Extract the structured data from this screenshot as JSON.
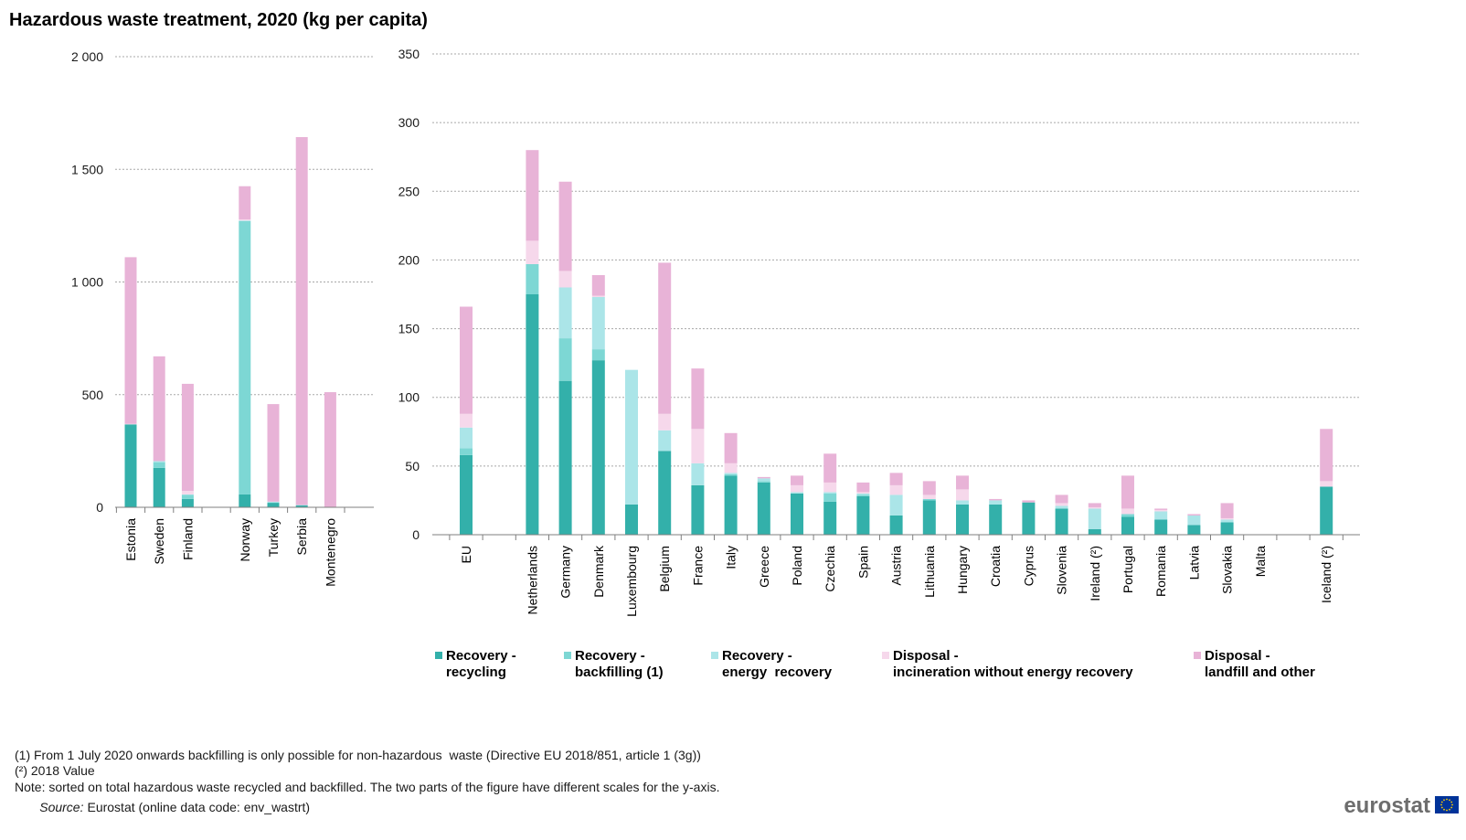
{
  "title": "Hazardous waste treatment, 2020 (kg per capita)",
  "chart_data": [
    {
      "type": "bar",
      "stacked": true,
      "grid": true,
      "category_groups": [
        [
          "Estonia",
          "Sweden",
          "Finland"
        ],
        [
          "Norway",
          "Turkey",
          "Serbia",
          "Montenegro"
        ]
      ],
      "ylim": [
        0,
        2000
      ],
      "yticks": [
        "0",
        "500",
        "1 000",
        "1 500",
        "2 000"
      ],
      "series": [
        {
          "color": "#33b0aa",
          "values": [
            368,
            175,
            37,
            57,
            20,
            8,
            0
          ]
        },
        {
          "color": "#7dd7d4",
          "values": [
            0,
            25,
            18,
            1213,
            0,
            0,
            0
          ]
        },
        {
          "color": "#abe5e8",
          "values": [
            0,
            5,
            2,
            3,
            5,
            2,
            0
          ]
        },
        {
          "color": "#f6d8eb",
          "values": [
            2,
            0,
            16,
            5,
            0,
            0,
            0
          ]
        },
        {
          "color": "#e8b3d7",
          "values": [
            740,
            465,
            475,
            147,
            433,
            1633,
            511
          ]
        }
      ]
    },
    {
      "type": "bar",
      "stacked": true,
      "grid": true,
      "legend_placement": "bottom",
      "category_groups": [
        [
          "EU"
        ],
        [
          "Netherlands",
          "Germany",
          "Denmark",
          "Luxembourg",
          "Belgium",
          "France",
          "Italy",
          "Greece",
          "Poland",
          "Czechia",
          "Spain",
          "Austria",
          "Lithuania",
          "Hungary",
          "Croatia",
          "Cyprus",
          "Slovenia",
          "Ireland (²)",
          "Portugal",
          "Romania",
          "Latvia",
          "Slovakia",
          "Malta"
        ],
        [
          "Iceland (²)"
        ]
      ],
      "ylim": [
        0,
        350
      ],
      "yticks": [
        "0",
        "50",
        "100",
        "150",
        "200",
        "250",
        "300",
        "350"
      ],
      "series": [
        {
          "color": "#33b0aa",
          "values": [
            58,
            175,
            112,
            127,
            22,
            61,
            36,
            43,
            38,
            30,
            24,
            28,
            14,
            25,
            22,
            22,
            23.5,
            19,
            4,
            13,
            11,
            7,
            9,
            0,
            35
          ]
        },
        {
          "color": "#7dd7d4",
          "values": [
            5,
            22,
            31,
            8,
            0,
            0,
            0,
            1,
            1,
            0,
            6,
            1,
            0,
            1,
            0,
            0,
            0,
            0,
            0,
            2,
            0,
            0,
            0,
            0,
            0
          ]
        },
        {
          "color": "#abe5e8",
          "values": [
            15,
            0,
            37,
            38,
            98,
            15,
            16,
            1,
            2,
            1,
            1,
            1,
            15,
            0,
            3,
            3,
            0,
            2,
            15,
            0,
            6,
            7,
            2,
            0,
            0
          ]
        },
        {
          "color": "#f6d8eb",
          "values": [
            10,
            17,
            12,
            1,
            0,
            12,
            25,
            7,
            0,
            5,
            7,
            1,
            7,
            3,
            8,
            0,
            0,
            2,
            1,
            4,
            1,
            0,
            1,
            0,
            4
          ]
        },
        {
          "color": "#e8b3d7",
          "values": [
            78,
            66,
            65,
            15,
            0,
            110,
            44,
            22,
            1,
            7,
            21,
            7,
            9,
            10,
            10,
            1,
            1.5,
            6,
            3,
            24,
            1,
            1,
            11,
            0,
            38
          ]
        }
      ]
    }
  ],
  "legend": [
    {
      "lines": [
        "Recovery -",
        "recycling"
      ],
      "color": "#33b0aa"
    },
    {
      "lines": [
        "Recovery -",
        "backfilling (1)"
      ],
      "color": "#7dd7d4"
    },
    {
      "lines": [
        "Recovery -",
        "energy  recovery"
      ],
      "color": "#abe5e8"
    },
    {
      "lines": [
        "Disposal -",
        "incineration without energy recovery"
      ],
      "color": "#f6d8eb"
    },
    {
      "lines": [
        "Disposal -",
        "landfill and other"
      ],
      "color": "#e8b3d7"
    }
  ],
  "footnotes": [
    "(1) From 1 July 2020 onwards backfilling is only possible for non-hazardous  waste (Directive EU 2018/851, article 1 (3g))",
    "(²) 2018 Value",
    "Note: sorted on total hazardous waste recycled and backfilled. The two parts of the figure have different scales for the y-axis."
  ],
  "source": {
    "label": "Source:",
    "text": "Eurostat (online data code: env_wastrt)"
  },
  "logo": {
    "text": "eurostat",
    "icon": "eu-flag-icon",
    "flag_color": "#003399",
    "star_color": "#ffcc00"
  }
}
